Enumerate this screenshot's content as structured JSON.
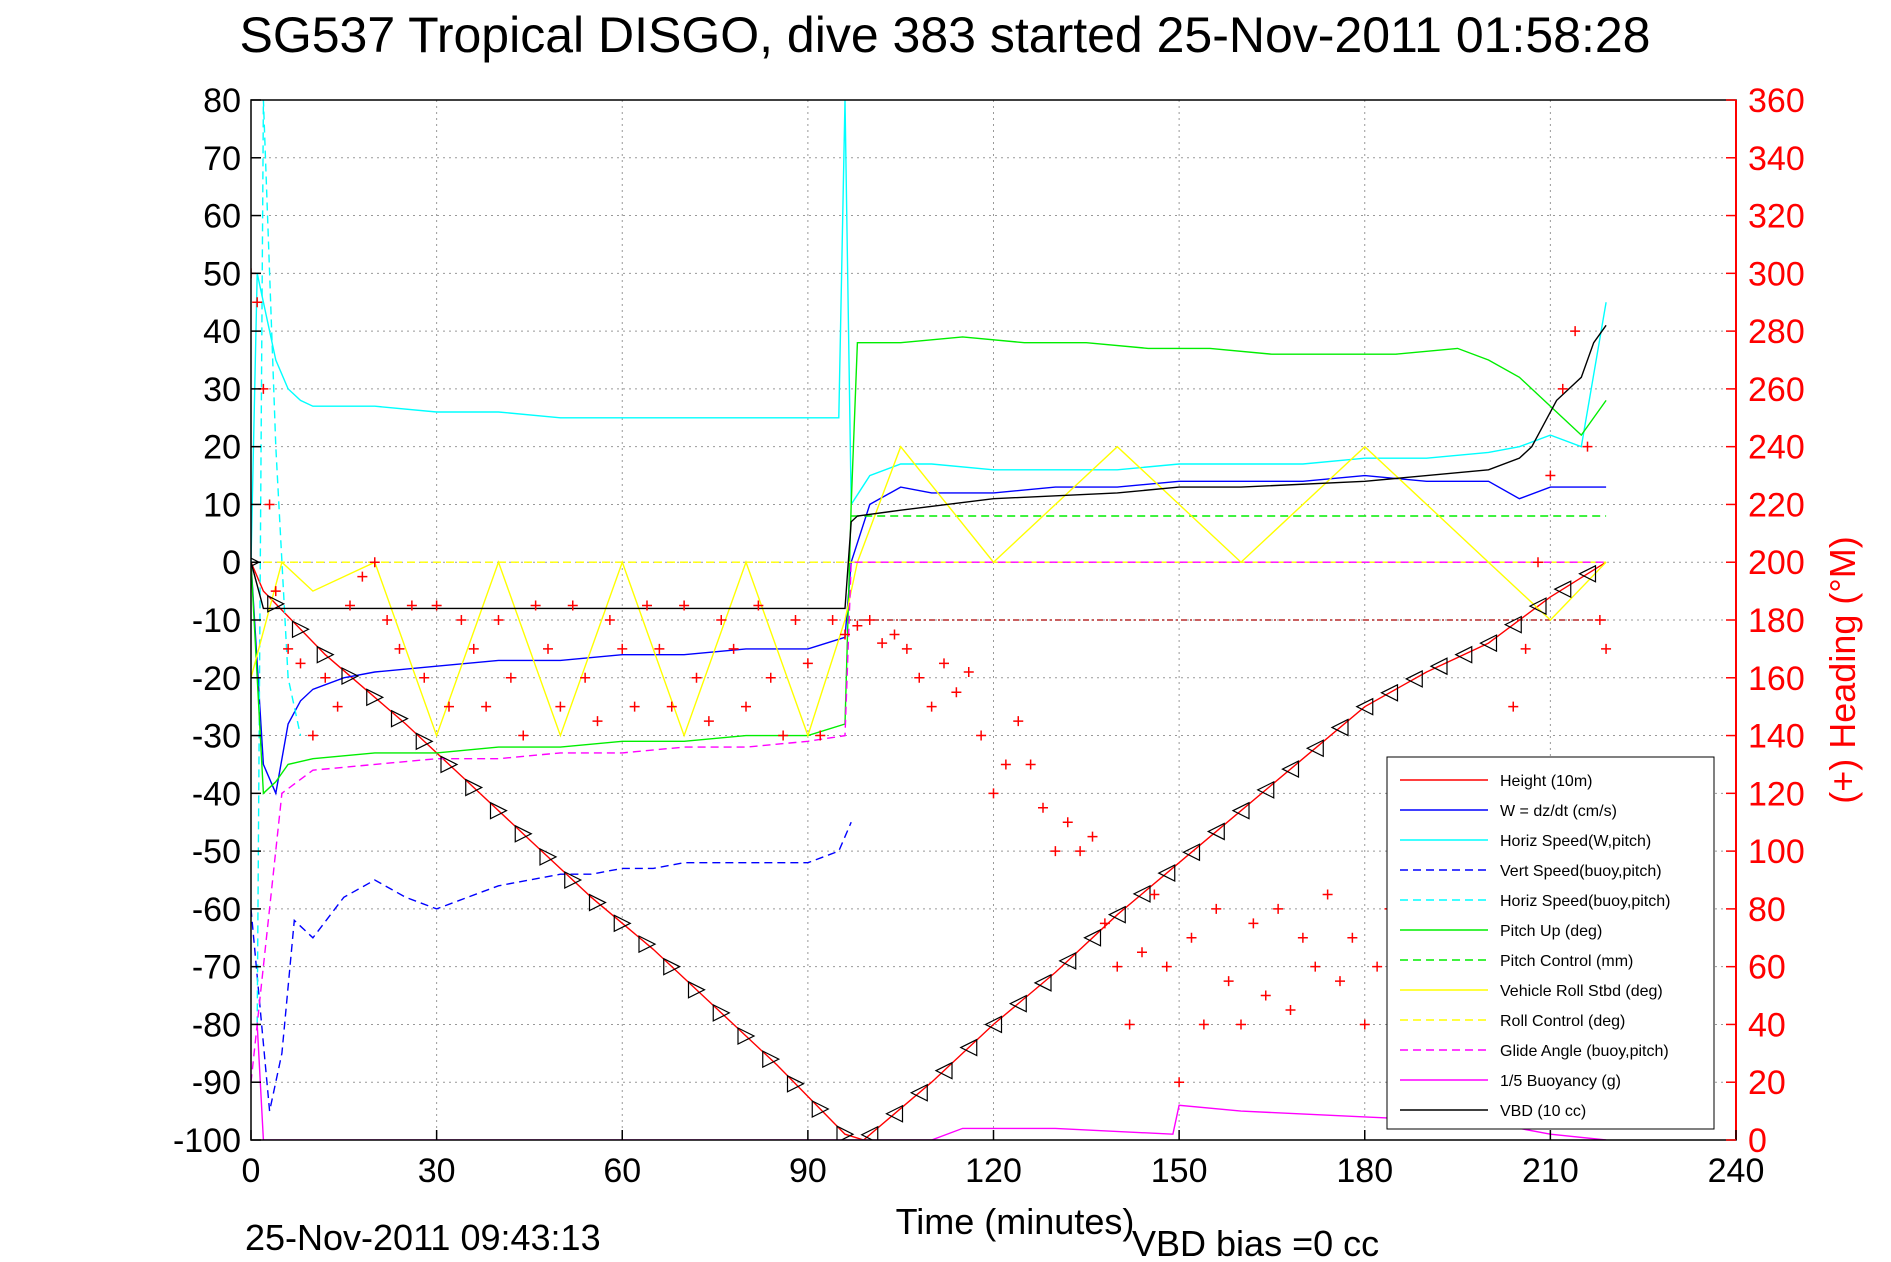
{
  "chart_data": {
    "type": "line",
    "title": "SG537 Tropical DISGO, dive 383 started 25-Nov-2011 01:58:28",
    "xlabel": "Time (minutes)",
    "ylabel": "",
    "y2label": "(+) Heading (°M)",
    "xlim": [
      0,
      240
    ],
    "ylim": [
      -100,
      80
    ],
    "y2lim": [
      0,
      360
    ],
    "xticks": [
      "0",
      "30",
      "60",
      "90",
      "120",
      "150",
      "180",
      "210",
      "240"
    ],
    "yticks": [
      "80",
      "70",
      "60",
      "50",
      "40",
      "30",
      "20",
      "10",
      "0",
      "-10",
      "-20",
      "-30",
      "-40",
      "-50",
      "-60",
      "-70",
      "-80",
      "-90",
      "-100"
    ],
    "y2ticks": [
      "360",
      "340",
      "320",
      "300",
      "280",
      "260",
      "240",
      "220",
      "200",
      "180",
      "160",
      "140",
      "120",
      "100",
      "80",
      "60",
      "40",
      "20",
      "0"
    ],
    "grid": true,
    "legend_position": "bottom-right",
    "footer_left": "25-Nov-2011 09:43:13",
    "footer_right": "VBD bias =0 cc",
    "colors": {
      "red": "#ff0000",
      "blue": "#0000ff",
      "cyan": "#00ffff",
      "green": "#00ee00",
      "yellow": "#ffff00",
      "magenta": "#ff00ff",
      "black": "#000000",
      "darkred": "#aa0000"
    },
    "series": [
      {
        "name": "Height (10m)",
        "color": "#ff0000",
        "style": "solid",
        "x": [
          0,
          2,
          12,
          25,
          35,
          45,
          55,
          65,
          75,
          85,
          96,
          99,
          110,
          120,
          130,
          140,
          150,
          160,
          170,
          180,
          190,
          200,
          210,
          219
        ],
        "y": [
          0,
          -5,
          -16,
          -28,
          -38,
          -48,
          -58,
          -67,
          -77,
          -87,
          -99,
          -100,
          -90,
          -80,
          -71,
          -61,
          -52,
          -43,
          -34,
          -25,
          -19,
          -14,
          -6,
          0
        ]
      },
      {
        "name": "W = dz/dt (cm/s)",
        "color": "#0000ff",
        "style": "solid",
        "x": [
          0,
          2,
          4,
          6,
          8,
          10,
          15,
          20,
          30,
          40,
          50,
          60,
          70,
          80,
          90,
          96,
          97,
          100,
          105,
          110,
          120,
          130,
          140,
          150,
          160,
          170,
          180,
          190,
          200,
          205,
          210,
          215,
          219
        ],
        "y": [
          0,
          -35,
          -40,
          -28,
          -24,
          -22,
          -20,
          -19,
          -18,
          -17,
          -17,
          -16,
          -16,
          -15,
          -15,
          -13,
          0,
          10,
          13,
          12,
          12,
          13,
          13,
          14,
          14,
          14,
          15,
          14,
          14,
          11,
          13,
          13,
          13
        ]
      },
      {
        "name": "Horiz Speed(W,pitch)",
        "color": "#00ffff",
        "style": "solid",
        "x": [
          0,
          1,
          2,
          4,
          6,
          8,
          10,
          20,
          30,
          40,
          50,
          60,
          70,
          80,
          90,
          95,
          96,
          97,
          100,
          105,
          110,
          120,
          130,
          140,
          150,
          160,
          170,
          180,
          190,
          200,
          205,
          210,
          215,
          219
        ],
        "y": [
          0,
          50,
          45,
          35,
          30,
          28,
          27,
          27,
          26,
          26,
          25,
          25,
          25,
          25,
          25,
          25,
          80,
          10,
          15,
          17,
          17,
          16,
          16,
          16,
          17,
          17,
          17,
          18,
          18,
          19,
          20,
          22,
          20,
          45
        ]
      },
      {
        "name": "Vert Speed(buoy,pitch)",
        "color": "#0000ff",
        "style": "dashed",
        "x": [
          0,
          3,
          5,
          7,
          10,
          15,
          20,
          25,
          30,
          35,
          40,
          45,
          50,
          55,
          60,
          65,
          70,
          75,
          80,
          85,
          90,
          95,
          97
        ],
        "y": [
          -60,
          -95,
          -85,
          -62,
          -65,
          -58,
          -55,
          -58,
          -60,
          -58,
          -56,
          -55,
          -54,
          -54,
          -53,
          -53,
          -52,
          -52,
          -52,
          -52,
          -52,
          -50,
          -45
        ]
      },
      {
        "name": "Horiz Speed(buoy,pitch)",
        "color": "#00ffff",
        "style": "dashed",
        "x": [
          1,
          2,
          4,
          6,
          8
        ],
        "y": [
          -80,
          80,
          20,
          -20,
          -30
        ]
      },
      {
        "name": "Pitch Up (deg)",
        "color": "#00ee00",
        "style": "solid",
        "x": [
          0,
          2,
          4,
          6,
          10,
          20,
          30,
          40,
          50,
          60,
          70,
          80,
          90,
          96,
          97,
          98,
          105,
          115,
          125,
          135,
          145,
          155,
          165,
          175,
          185,
          195,
          200,
          205,
          210,
          215,
          219
        ],
        "y": [
          0,
          -40,
          -38,
          -35,
          -34,
          -33,
          -33,
          -32,
          -32,
          -31,
          -31,
          -30,
          -30,
          -28,
          10,
          38,
          38,
          39,
          38,
          38,
          37,
          37,
          36,
          36,
          36,
          37,
          35,
          32,
          27,
          22,
          28
        ]
      },
      {
        "name": "Pitch Control (mm)",
        "color": "#00ee00",
        "style": "dashed",
        "x": [
          97,
          105,
          120,
          140,
          160,
          180,
          200,
          219
        ],
        "y": [
          8,
          8,
          8,
          8,
          8,
          8,
          8,
          8
        ]
      },
      {
        "name": "Vehicle Roll Stbd (deg)",
        "color": "#ffff00",
        "style": "solid",
        "x": [
          0,
          5,
          10,
          20,
          30,
          40,
          50,
          60,
          70,
          80,
          90,
          96,
          98,
          105,
          120,
          140,
          160,
          180,
          200,
          210,
          219
        ],
        "y": [
          -20,
          0,
          -5,
          0,
          -30,
          0,
          -30,
          0,
          -30,
          0,
          -30,
          -10,
          0,
          20,
          0,
          20,
          0,
          20,
          0,
          -10,
          0
        ]
      },
      {
        "name": "Roll Control (deg)",
        "color": "#ffff00",
        "style": "dashed",
        "x": [
          0,
          30,
          60,
          90,
          120,
          150,
          180,
          210,
          219
        ],
        "y": [
          0,
          0,
          0,
          0,
          0,
          0,
          0,
          0,
          0
        ]
      },
      {
        "name": "Glide Angle (buoy,pitch)",
        "color": "#ff00ff",
        "style": "dashed",
        "x": [
          0,
          5,
          10,
          20,
          30,
          40,
          50,
          60,
          70,
          80,
          90,
          96,
          97,
          120,
          150,
          180,
          210,
          219
        ],
        "y": [
          -90,
          -40,
          -36,
          -35,
          -34,
          -34,
          -33,
          -33,
          -32,
          -32,
          -31,
          -30,
          0,
          0,
          0,
          0,
          0,
          0
        ]
      },
      {
        "name": "1/5 Buoyancy (g)",
        "color": "#ff00ff",
        "style": "solid",
        "x": [
          1,
          2,
          96,
          100,
          110,
          115,
          130,
          149,
          150,
          160,
          180,
          200,
          205,
          210,
          219
        ],
        "y": [
          -80,
          -100,
          -100,
          -100,
          -100,
          -98,
          -98,
          -99,
          -94,
          -95,
          -96,
          -97,
          -98,
          -99,
          -100
        ]
      },
      {
        "name": "VBD (10 cc)",
        "color": "#000000",
        "style": "solid",
        "x": [
          0,
          2,
          4,
          96,
          97,
          98,
          105,
          120,
          140,
          150,
          160,
          180,
          190,
          200,
          205,
          207,
          209,
          211,
          213,
          215,
          217,
          219
        ],
        "y": [
          0,
          -8,
          -8,
          -8,
          7,
          8,
          9,
          11,
          12,
          13,
          13,
          14,
          15,
          16,
          18,
          20,
          24,
          28,
          30,
          32,
          38,
          41
        ]
      }
    ],
    "heading": {
      "name": "(+) Heading (°M)",
      "color": "#ff0000",
      "marker": "+",
      "x": [
        0,
        1,
        2,
        3,
        4,
        6,
        8,
        10,
        12,
        14,
        16,
        18,
        20,
        22,
        24,
        26,
        28,
        30,
        32,
        34,
        36,
        38,
        40,
        42,
        44,
        46,
        48,
        50,
        52,
        54,
        56,
        58,
        60,
        62,
        64,
        66,
        68,
        70,
        72,
        74,
        76,
        78,
        80,
        82,
        84,
        86,
        88,
        90,
        92,
        94,
        96,
        98,
        100,
        102,
        104,
        106,
        108,
        110,
        112,
        114,
        116,
        118,
        120,
        122,
        124,
        126,
        128,
        130,
        132,
        134,
        136,
        138,
        140,
        142,
        144,
        146,
        148,
        150,
        152,
        154,
        156,
        158,
        160,
        162,
        164,
        166,
        168,
        170,
        172,
        174,
        176,
        178,
        180,
        182,
        184,
        186,
        188,
        190,
        192,
        194,
        196,
        198,
        200,
        202,
        204,
        206,
        208,
        210,
        212,
        214,
        216,
        218,
        219
      ],
      "y": [
        300,
        290,
        260,
        220,
        190,
        170,
        165,
        140,
        160,
        150,
        185,
        195,
        200,
        180,
        170,
        185,
        160,
        185,
        150,
        180,
        170,
        150,
        180,
        160,
        140,
        185,
        170,
        150,
        185,
        160,
        145,
        180,
        170,
        150,
        185,
        170,
        150,
        185,
        160,
        145,
        180,
        170,
        150,
        185,
        160,
        140,
        180,
        165,
        140,
        180,
        175,
        178,
        180,
        172,
        175,
        170,
        160,
        150,
        165,
        155,
        162,
        140,
        120,
        130,
        145,
        130,
        115,
        100,
        110,
        100,
        105,
        75,
        60,
        40,
        65,
        85,
        60,
        20,
        70,
        40,
        80,
        55,
        40,
        75,
        50,
        80,
        45,
        70,
        60,
        85,
        55,
        70,
        40,
        60,
        80,
        65,
        50,
        70,
        60,
        75,
        90,
        65,
        50,
        120,
        150,
        170,
        200,
        230,
        260,
        280,
        240,
        180,
        170
      ]
    }
  },
  "legend": [
    "Height (10m)",
    "W = dz/dt (cm/s)",
    "Horiz Speed(W,pitch)",
    "Vert Speed(buoy,pitch)",
    "Horiz Speed(buoy,pitch)",
    "Pitch Up (deg)",
    "Pitch Control (mm)",
    "Vehicle Roll Stbd (deg)",
    "Roll Control (deg)",
    "Glide Angle (buoy,pitch)",
    "1/5 Buoyancy (g)",
    "VBD (10 cc)"
  ]
}
